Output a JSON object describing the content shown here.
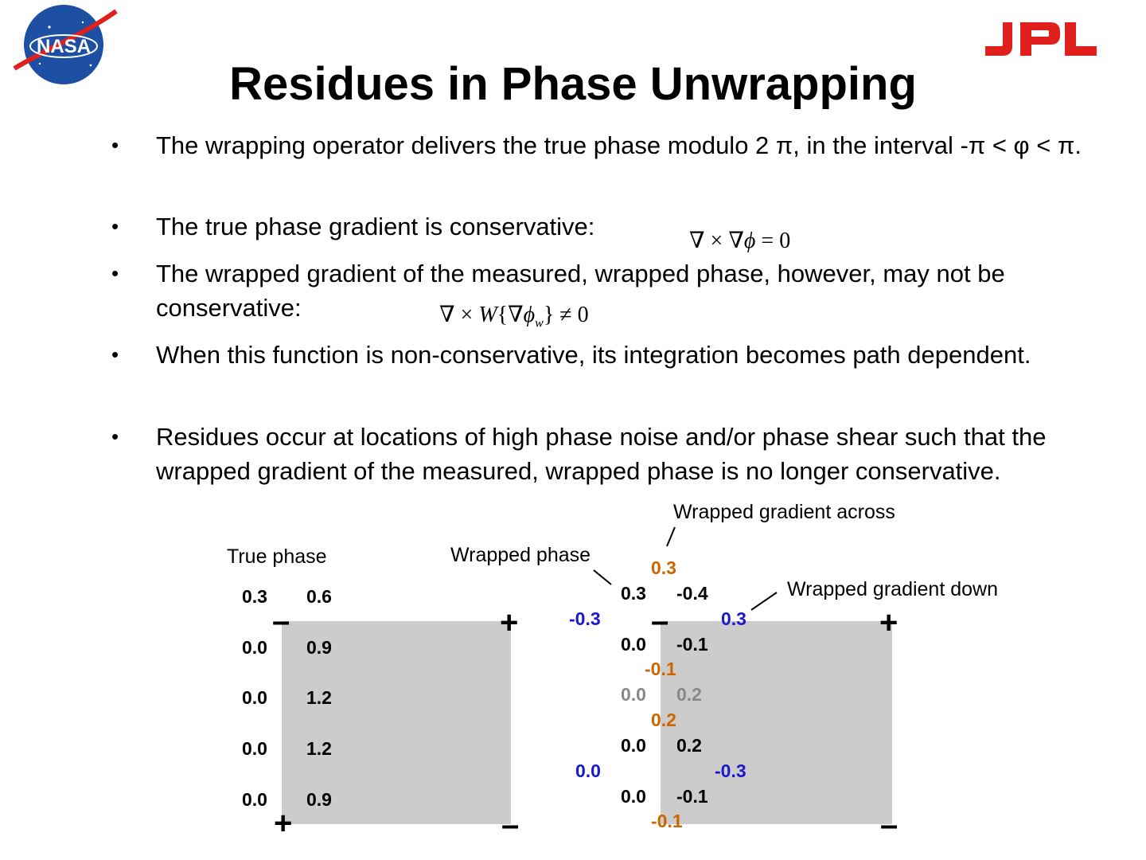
{
  "logos": {
    "left": "NASA",
    "right": "JPL"
  },
  "colors": {
    "jpl_red": "#e0201c",
    "nasa_blue": "#1d4fa3",
    "panel_gray": "#cccccc",
    "orange": "#cc6600",
    "blue": "#1a1acc",
    "gray_text": "#888888"
  },
  "title": "Residues in Phase Unwrapping",
  "bullets": [
    {
      "marker": "•",
      "text": "The wrapping operator delivers the true phase modulo 2 π, in the interval -π < φ  < π."
    },
    {
      "marker": "•",
      "text": "The true phase gradient  is conservative:"
    },
    {
      "marker": "•",
      "text": "The wrapped gradient of the measured, wrapped phase, however, may not be conservative:"
    },
    {
      "marker": "•",
      "text": "When this function is non-conservative, its integration becomes path dependent."
    },
    {
      "marker": "•",
      "text": "Residues occur at locations of high phase noise and/or phase shear such that the wrapped gradient of the measured, wrapped phase is no longer conservative."
    }
  ],
  "equations": {
    "conservative": {
      "pre": "∇ × ∇",
      "phi": "ϕ",
      "post": " = 0"
    },
    "nonconservative": {
      "pre": "∇ × ",
      "W": "W",
      "open": "{∇",
      "phi": "ϕ",
      "sub": "w",
      "post": "} ≠ 0"
    }
  },
  "true_phase": {
    "label": "True phase",
    "rows": [
      [
        "0.3",
        "0.6"
      ],
      [
        "0.0",
        "0.9"
      ],
      [
        "0.0",
        "1.2"
      ],
      [
        "0.0",
        "1.2"
      ],
      [
        "0.0",
        "0.9"
      ]
    ],
    "signs": {
      "top_left": "–",
      "top_right": "+",
      "bottom_left": "+",
      "bottom_right": "–"
    }
  },
  "wrapped_phase": {
    "label": "Wrapped phase",
    "label_across": "Wrapped gradient across",
    "label_down": "Wrapped gradient down",
    "rows": [
      [
        "0.3",
        "-0.4"
      ],
      [
        "0.0",
        "-0.1"
      ],
      [
        "0.0",
        "0.2"
      ],
      [
        "0.0",
        "0.2"
      ],
      [
        "0.0",
        "-0.1"
      ]
    ],
    "across": [
      "0.3",
      "-0.1",
      "0.2",
      "-0.1"
    ],
    "down": {
      "left_top": "-0.3",
      "right_top": "0.3",
      "left_bottom": "0.0",
      "right_bottom": "-0.3"
    },
    "signs": {
      "top_left": "–",
      "top_right": "+",
      "bottom_right": "–"
    }
  }
}
